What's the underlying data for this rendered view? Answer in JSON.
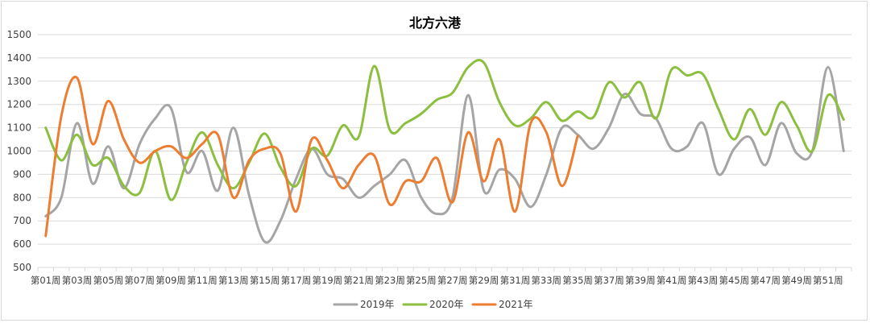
{
  "chart_data": {
    "type": "line",
    "title": "北方六港",
    "xlabel": "",
    "ylabel": "",
    "ylim": [
      500,
      1500
    ],
    "yticks": [
      500,
      600,
      700,
      800,
      900,
      1000,
      1100,
      1200,
      1300,
      1400,
      1500
    ],
    "grid": "horizontal",
    "legend": "bottom-center",
    "categories": [
      "第01周",
      "第02周",
      "第03周",
      "第04周",
      "第05周",
      "第06周",
      "第07周",
      "第08周",
      "第09周",
      "第10周",
      "第11周",
      "第12周",
      "第13周",
      "第14周",
      "第15周",
      "第16周",
      "第17周",
      "第18周",
      "第19周",
      "第20周",
      "第21周",
      "第22周",
      "第23周",
      "第24周",
      "第25周",
      "第26周",
      "第27周",
      "第28周",
      "第29周",
      "第30周",
      "第31周",
      "第32周",
      "第33周",
      "第34周",
      "第35周",
      "第36周",
      "第37周",
      "第38周",
      "第39周",
      "第40周",
      "第41周",
      "第42周",
      "第43周",
      "第44周",
      "第45周",
      "第46周",
      "第47周",
      "第48周",
      "第49周",
      "第50周",
      "第51周",
      "第52周"
    ],
    "tick_labels": [
      "第01周",
      "第03周",
      "第05周",
      "第07周",
      "第09周",
      "第11周",
      "第13周",
      "第15周",
      "第17周",
      "第19周",
      "第21周",
      "第23周",
      "第25周",
      "第27周",
      "第29周",
      "第31周",
      "第33周",
      "第35周",
      "第37周",
      "第39周",
      "第41周",
      "第43周",
      "第45周",
      "第47周",
      "第49周",
      "第51周"
    ],
    "series": [
      {
        "name": "2019年",
        "color": "#a5a5a5",
        "values": [
          720,
          800,
          1120,
          860,
          1020,
          840,
          1030,
          1140,
          1185,
          910,
          1000,
          830,
          1100,
          810,
          610,
          700,
          880,
          1010,
          900,
          880,
          800,
          850,
          900,
          960,
          800,
          730,
          800,
          1240,
          830,
          920,
          880,
          760,
          900,
          1100,
          1070,
          1010,
          1100,
          1245,
          1160,
          1140,
          1010,
          1020,
          1120,
          900,
          1010,
          1060,
          940,
          1120,
          990,
          1000,
          1360,
          1000
        ]
      },
      {
        "name": "2020年",
        "color": "#8cbf3f",
        "values": [
          1100,
          960,
          1070,
          940,
          970,
          850,
          820,
          1000,
          790,
          950,
          1080,
          940,
          840,
          950,
          1075,
          930,
          850,
          1010,
          980,
          1110,
          1060,
          1365,
          1090,
          1120,
          1160,
          1220,
          1250,
          1360,
          1380,
          1210,
          1110,
          1140,
          1210,
          1130,
          1170,
          1145,
          1295,
          1230,
          1295,
          1140,
          1350,
          1325,
          1330,
          1180,
          1050,
          1180,
          1070,
          1210,
          1110,
          1000,
          1240,
          1135
        ]
      },
      {
        "name": "2021年",
        "color": "#ed7d31",
        "values": [
          635,
          1150,
          1315,
          1030,
          1215,
          1050,
          950,
          1000,
          1020,
          970,
          1030,
          1070,
          800,
          960,
          1010,
          990,
          740,
          1050,
          960,
          840,
          940,
          980,
          770,
          870,
          870,
          970,
          780,
          1080,
          870,
          1050,
          740,
          1120,
          1080,
          850,
          1065,
          null,
          null,
          null,
          null,
          null,
          null,
          null,
          null,
          null,
          null,
          null,
          null,
          null,
          null,
          null,
          null,
          null
        ]
      }
    ]
  }
}
